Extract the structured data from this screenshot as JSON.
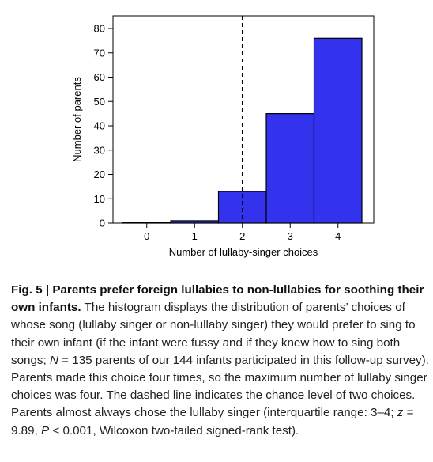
{
  "chart_data": {
    "type": "bar",
    "categories": [
      "0",
      "1",
      "2",
      "3",
      "4"
    ],
    "values": [
      0.3,
      1,
      13,
      45,
      76
    ],
    "xlabel": "Number of lullaby-singer choices",
    "ylabel": "Number of parents",
    "ylim": [
      0,
      86
    ],
    "yticks": [
      0,
      10,
      20,
      30,
      40,
      50,
      60,
      70,
      80
    ],
    "reference_line": {
      "x": 2,
      "style": "dashed"
    },
    "bar_color": "#3333ee",
    "grid": false
  },
  "caption": {
    "label": "Fig. 5 | Parents prefer foreign lullabies to non-lullabies for soothing their own infants.",
    "text1": " The histogram displays the distribution of parents’ choices of whose song (lullaby singer or non-lullaby singer) they would prefer to sing to their own infant (if the infant were fussy and if they knew how to sing both songs; ",
    "n_var": "N",
    "text2": " = 135 parents of our 144 infants participated in this follow-up survey). Parents made this choice four times, so the maximum number of lullaby singer choices was four. The dashed line indicates the chance level of two choices. Parents almost always chose the lullaby singer (interquartile range: 3–4; ",
    "z_var": "z",
    "text3": " = 9.89, ",
    "p_var": "P",
    "text4": " < 0.001, Wilcoxon two-tailed signed-rank test)."
  }
}
